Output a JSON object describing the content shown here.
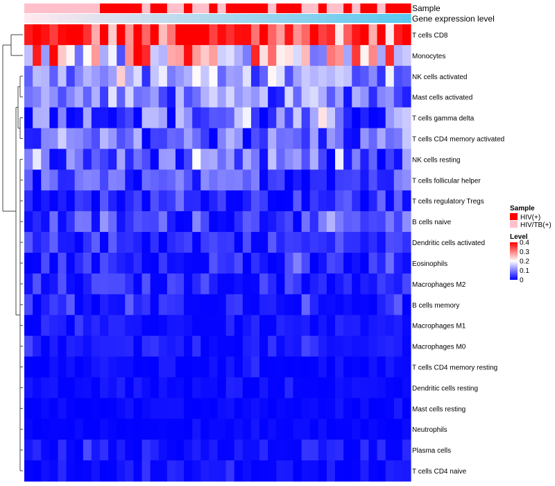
{
  "chart_data": {
    "type": "heatmap",
    "title": "",
    "xlabel": "",
    "ylabel": "",
    "annotation_tracks": [
      "Sample",
      "Gene expression level"
    ],
    "rows": [
      "T cells CD8",
      "Monocytes",
      "NK cells activated",
      "Mast cells activated",
      "T cells gamma delta",
      "T cells CD4 memory activated",
      "NK cells resting",
      "T cells follicular helper",
      "T cells regulatory  Tregs",
      "B cells naive",
      "Dendritic cells activated",
      "Eosinophils",
      "Macrophages M2",
      "B cells memory",
      "Macrophages M1",
      "Macrophages M0",
      "T cells CD4 memory resting",
      "Dendritic cells resting",
      "Mast cells resting",
      "Neutrophils",
      "Plasma cells",
      "T cells CD4 naive"
    ],
    "n_samples": 46,
    "sample_groups": [
      "HIV/TB(+)",
      "HIV/TB(+)",
      "HIV/TB(+)",
      "HIV/TB(+)",
      "HIV/TB(+)",
      "HIV/TB(+)",
      "HIV/TB(+)",
      "HIV/TB(+)",
      "HIV/TB(+)",
      "HIV(+)",
      "HIV(+)",
      "HIV(+)",
      "HIV(+)",
      "HIV(+)",
      "HIV/TB(+)",
      "HIV(+)",
      "HIV(+)",
      "HIV/TB(+)",
      "HIV/TB(+)",
      "HIV(+)",
      "HIV/TB(+)",
      "HIV/TB(+)",
      "HIV(+)",
      "HIV/TB(+)",
      "HIV(+)",
      "HIV(+)",
      "HIV(+)",
      "HIV(+)",
      "HIV(+)",
      "HIV/TB(+)",
      "HIV(+)",
      "HIV(+)",
      "HIV(+)",
      "HIV/TB(+)",
      "HIV/TB(+)",
      "HIV(+)",
      "HIV/TB(+)",
      "HIV/TB(+)",
      "HIV(+)",
      "HIV/TB(+)",
      "HIV(+)",
      "HIV(+)",
      "HIV/TB(+)",
      "HIV(+)",
      "HIV(+)",
      "HIV(+)"
    ],
    "row_means": [
      0.34,
      0.22,
      0.11,
      0.09,
      0.07,
      0.07,
      0.06,
      0.05,
      0.03,
      0.045,
      0.03,
      0.02,
      0.02,
      0.015,
      0.008,
      0.01,
      0.005,
      0.004,
      0.002,
      0.002,
      0.01,
      0.008
    ],
    "row_spreads": [
      0.08,
      0.1,
      0.05,
      0.05,
      0.06,
      0.05,
      0.05,
      0.04,
      0.03,
      0.035,
      0.03,
      0.03,
      0.03,
      0.025,
      0.015,
      0.02,
      0.012,
      0.01,
      0.008,
      0.006,
      0.02,
      0.015
    ],
    "color_scale": {
      "low": "#0000ff",
      "mid": "#ffffff",
      "high": "#ff0000",
      "min": 0,
      "mid_value": 0.2,
      "max": 0.4
    },
    "legend": {
      "sample_title": "Sample",
      "sample_entries": [
        {
          "label": "HIV(+)",
          "color": "#ff0000"
        },
        {
          "label": "HIV/TB(+)",
          "color": "#ffc0cb"
        }
      ],
      "level_title": "Level",
      "level_ticks": [
        "0.4",
        "0.3",
        "0.2",
        "0.1",
        "0"
      ],
      "level_tick_values": [
        0.4,
        0.3,
        0.2,
        0.1,
        0
      ]
    },
    "expression_track_colors": {
      "start": "#ffe8ee",
      "end": "#5bc8ef"
    }
  }
}
